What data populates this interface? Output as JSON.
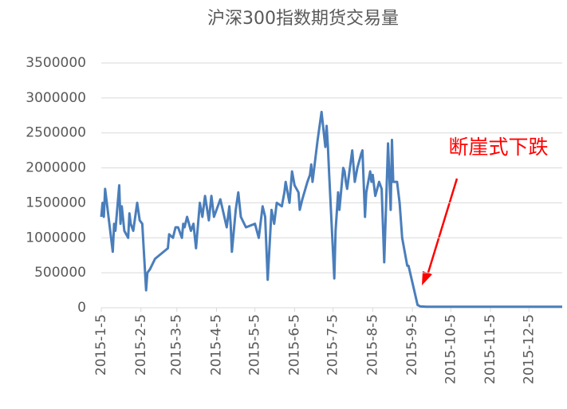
{
  "chart_data": {
    "type": "line",
    "title": "沪深300指数期货交易量",
    "annotation": "断崖式下跌",
    "x": [
      "2015-1-5",
      "2015-1-6",
      "2015-1-7",
      "2015-1-8",
      "2015-1-9",
      "2015-1-12",
      "2015-1-14",
      "2015-1-15",
      "2015-1-16",
      "2015-1-19",
      "2015-1-20",
      "2015-1-21",
      "2015-1-23",
      "2015-1-26",
      "2015-1-27",
      "2015-1-28",
      "2015-1-30",
      "2015-2-2",
      "2015-2-4",
      "2015-2-6",
      "2015-2-9",
      "2015-2-10",
      "2015-2-12",
      "2015-2-16",
      "2015-2-26",
      "2015-2-27",
      "2015-3-2",
      "2015-3-4",
      "2015-3-6",
      "2015-3-9",
      "2015-3-10",
      "2015-3-11",
      "2015-3-13",
      "2015-3-16",
      "2015-3-18",
      "2015-3-20",
      "2015-3-23",
      "2015-3-25",
      "2015-3-27",
      "2015-3-30",
      "2015-4-1",
      "2015-4-3",
      "2015-4-8",
      "2015-4-13",
      "2015-4-15",
      "2015-4-16",
      "2015-4-17",
      "2015-4-20",
      "2015-4-22",
      "2015-4-24",
      "2015-4-28",
      "2015-5-5",
      "2015-5-8",
      "2015-5-11",
      "2015-5-13",
      "2015-5-15",
      "2015-5-18",
      "2015-5-20",
      "2015-5-22",
      "2015-5-26",
      "2015-5-28",
      "2015-5-29",
      "2015-6-1",
      "2015-6-3",
      "2015-6-5",
      "2015-6-8",
      "2015-6-9",
      "2015-6-11",
      "2015-6-15",
      "2015-6-17",
      "2015-6-18",
      "2015-6-19",
      "2015-6-23",
      "2015-6-26",
      "2015-6-29",
      "2015-6-30",
      "2015-7-1",
      "2015-7-2",
      "2015-7-6",
      "2015-7-7",
      "2015-7-9",
      "2015-7-10",
      "2015-7-13",
      "2015-7-14",
      "2015-7-15",
      "2015-7-16",
      "2015-7-20",
      "2015-7-22",
      "2015-7-24",
      "2015-7-27",
      "2015-7-28",
      "2015-7-30",
      "2015-7-31",
      "2015-8-3",
      "2015-8-4",
      "2015-8-5",
      "2015-8-7",
      "2015-8-10",
      "2015-8-12",
      "2015-8-14",
      "2015-8-17",
      "2015-8-18",
      "2015-8-19",
      "2015-8-20",
      "2015-8-21",
      "2015-8-24",
      "2015-8-26",
      "2015-8-28",
      "2015-9-1",
      "2015-9-2",
      "2015-9-7",
      "2015-9-9",
      "2015-9-11",
      "2015-9-16",
      "2015-10-8",
      "2015-10-30",
      "2015-11-20",
      "2015-12-10",
      "2015-12-31"
    ],
    "series": [
      {
        "name": "交易量",
        "color": "#4a7ebb",
        "values": [
          1300000,
          1500000,
          1300000,
          1700000,
          1550000,
          1100000,
          800000,
          1200000,
          1100000,
          1750000,
          1200000,
          1450000,
          1100000,
          1000000,
          1350000,
          1200000,
          1100000,
          1500000,
          1250000,
          1200000,
          250000,
          500000,
          550000,
          700000,
          850000,
          1050000,
          1000000,
          1150000,
          1150000,
          1000000,
          1200000,
          1150000,
          1300000,
          1100000,
          1200000,
          850000,
          1500000,
          1300000,
          1600000,
          1250000,
          1600000,
          1300000,
          1550000,
          1150000,
          1450000,
          1200000,
          800000,
          1400000,
          1650000,
          1300000,
          1150000,
          1200000,
          1000000,
          1450000,
          1300000,
          400000,
          1400000,
          1200000,
          1500000,
          1450000,
          1650000,
          1800000,
          1500000,
          1950000,
          1750000,
          1650000,
          1400000,
          1550000,
          1800000,
          1900000,
          2050000,
          1800000,
          2400000,
          2800000,
          2300000,
          2600000,
          2300000,
          1900000,
          420000,
          1100000,
          1650000,
          1400000,
          2000000,
          1950000,
          1800000,
          1700000,
          2250000,
          1800000,
          2000000,
          2200000,
          2250000,
          1300000,
          1650000,
          1950000,
          1800000,
          1900000,
          1600000,
          1800000,
          1700000,
          650000,
          2350000,
          1850000,
          1400000,
          2400000,
          1800000,
          1800000,
          1500000,
          1000000,
          600000,
          600000,
          200000,
          40000,
          20000,
          15000,
          15000,
          15000,
          15000,
          15000,
          15000
        ]
      }
    ],
    "xlim": [
      "2015-1-5",
      "2015-12-31"
    ],
    "xticks": [
      "2015-1-5",
      "2015-2-5",
      "2015-3-5",
      "2015-4-5",
      "2015-5-5",
      "2015-6-5",
      "2015-7-5",
      "2015-8-5",
      "2015-9-5",
      "2015-10-5",
      "2015-11-5",
      "2015-12-5"
    ],
    "ylim": [
      0,
      3500000
    ],
    "yticks": [
      0,
      500000,
      1000000,
      1500000,
      2000000,
      2500000,
      3000000,
      3500000
    ],
    "grid": true
  }
}
